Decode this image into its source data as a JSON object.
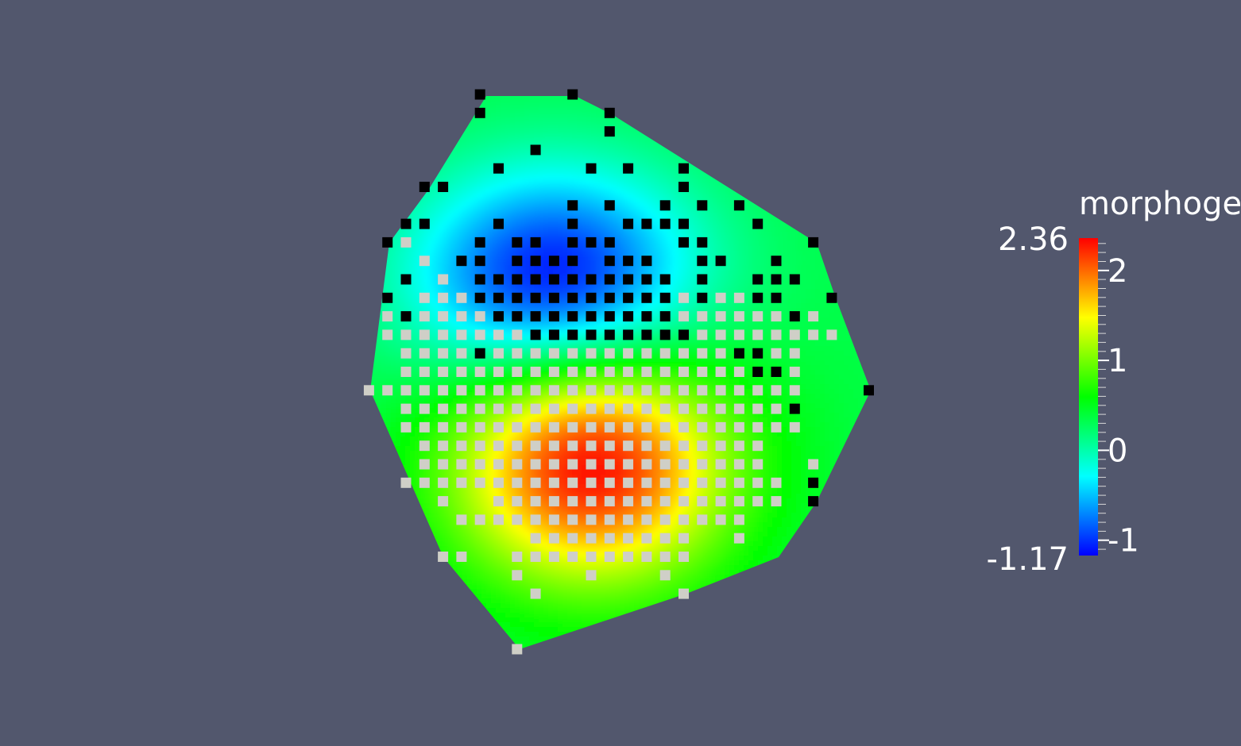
{
  "chart_data": {
    "type": "heatmap",
    "field_name": "morphoge",
    "colorbar": {
      "max_label": "2.36",
      "min_label": "-1.17",
      "range": [
        -1.17,
        2.36
      ],
      "ticks": [
        {
          "value": 2,
          "label": "2"
        },
        {
          "value": 1,
          "label": "1"
        },
        {
          "value": 0,
          "label": "0"
        },
        {
          "value": -1,
          "label": "-1"
        }
      ],
      "colormap": [
        "#0000ff",
        "#00ffff",
        "#00ff00",
        "#ffff00",
        "#ff0000"
      ]
    },
    "cell_types": [
      {
        "name": "black",
        "color": "#000000"
      },
      {
        "name": "grey",
        "color": "#cfcfc7"
      }
    ],
    "field_peaks": [
      {
        "cx": 0,
        "cy": 0,
        "value": 2.36
      },
      {
        "cx": -2,
        "cy": -10,
        "value": -1.17
      }
    ],
    "ambient_value": 0.35
  }
}
